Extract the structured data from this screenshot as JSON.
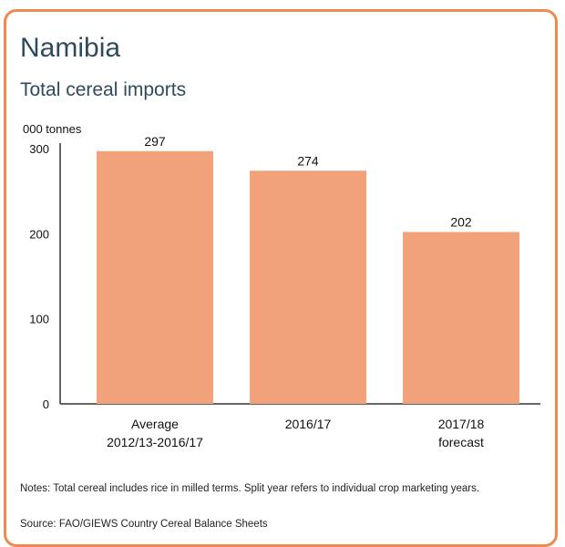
{
  "header": {
    "title": "Namibia",
    "subtitle": "Total cereal imports"
  },
  "footer": {
    "notes": "Notes: Total cereal includes rice in milled terms. Split year refers to individual crop marketing years.",
    "source": "Source: FAO/GIEWS Country Cereal Balance Sheets"
  },
  "colors": {
    "border": "#ef8a4f",
    "bar": "#f2a27a",
    "title": "#2f4a5c"
  },
  "chart_data": {
    "type": "bar",
    "ylabel": "000 tonnes",
    "ylim": [
      0,
      300
    ],
    "yticks": [
      "0",
      "100",
      "200",
      "300"
    ],
    "grid": false,
    "categories": [
      [
        "Average",
        "2012/13-2016/17"
      ],
      [
        "2016/17"
      ],
      [
        "2017/18",
        "forecast"
      ]
    ],
    "values": [
      297,
      274,
      202
    ],
    "data_labels": [
      "297",
      "274",
      "202"
    ]
  }
}
